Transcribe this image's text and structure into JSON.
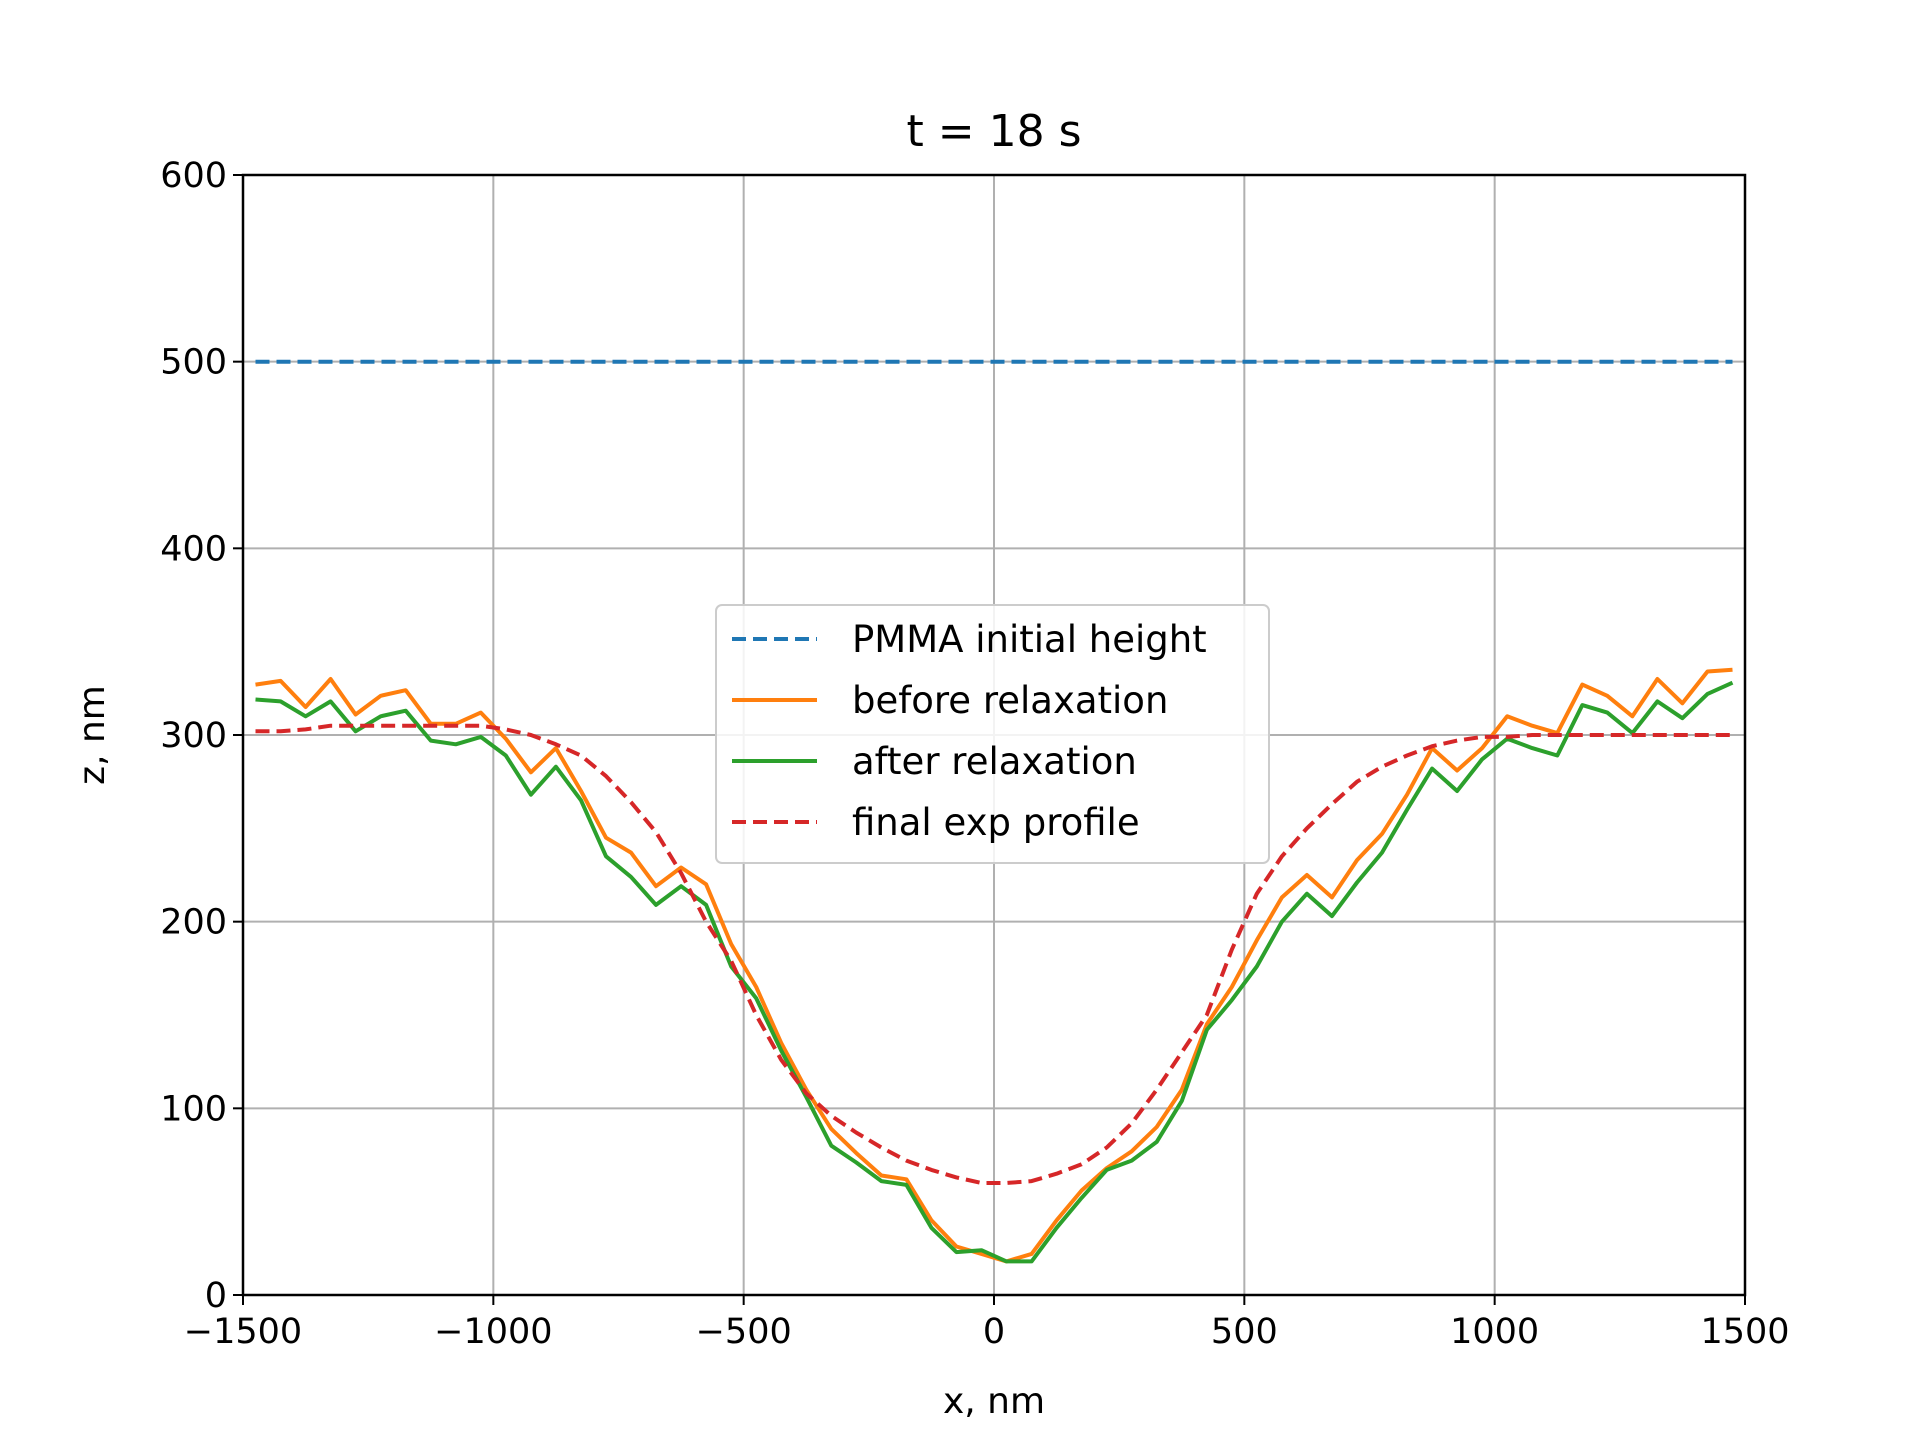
{
  "chart_data": {
    "type": "line",
    "title": "t = 18 s",
    "xlabel": "x, nm",
    "ylabel": "z, nm",
    "xlim": [
      -1500,
      1500
    ],
    "ylim": [
      0,
      600
    ],
    "xticks": [
      -1500,
      -1000,
      -500,
      0,
      500,
      1000,
      1500
    ],
    "xtick_labels": [
      "−1500",
      "−1000",
      "−500",
      "0",
      "500",
      "1000",
      "1500"
    ],
    "yticks": [
      0,
      100,
      200,
      300,
      400,
      500,
      600
    ],
    "ytick_labels": [
      "0",
      "100",
      "200",
      "300",
      "400",
      "500",
      "600"
    ],
    "grid": true,
    "legend_position": "center",
    "series": [
      {
        "name": "PMMA initial height",
        "color": "#1f77b4",
        "style": "dashed",
        "x": [
          -1475,
          1475
        ],
        "y": [
          500,
          500
        ]
      },
      {
        "name": "before relaxation",
        "color": "#ff7f0e",
        "style": "solid",
        "x": [
          -1475,
          -1425,
          -1375,
          -1325,
          -1275,
          -1225,
          -1175,
          -1125,
          -1075,
          -1025,
          -975,
          -925,
          -875,
          -825,
          -775,
          -725,
          -675,
          -625,
          -575,
          -525,
          -475,
          -425,
          -375,
          -325,
          -275,
          -225,
          -175,
          -125,
          -75,
          -25,
          25,
          75,
          125,
          175,
          225,
          275,
          325,
          375,
          425,
          475,
          525,
          575,
          625,
          675,
          725,
          775,
          825,
          875,
          925,
          975,
          1025,
          1075,
          1125,
          1175,
          1225,
          1275,
          1325,
          1375,
          1425,
          1475
        ],
        "y": [
          327,
          329,
          315,
          330,
          311,
          321,
          324,
          306,
          306,
          312,
          298,
          280,
          293,
          270,
          245,
          237,
          219,
          229,
          220,
          188,
          165,
          135,
          110,
          89,
          76,
          64,
          62,
          40,
          26,
          22,
          18,
          22,
          40,
          56,
          68,
          77,
          90,
          110,
          145,
          165,
          190,
          213,
          225,
          213,
          233,
          247,
          268,
          293,
          281,
          293,
          310,
          305,
          301,
          327,
          321,
          310,
          330,
          317,
          334,
          335
        ]
      },
      {
        "name": "after relaxation",
        "color": "#2ca02c",
        "style": "solid",
        "x": [
          -1475,
          -1425,
          -1375,
          -1325,
          -1275,
          -1225,
          -1175,
          -1125,
          -1075,
          -1025,
          -975,
          -925,
          -875,
          -825,
          -775,
          -725,
          -675,
          -625,
          -575,
          -525,
          -475,
          -425,
          -375,
          -325,
          -275,
          -225,
          -175,
          -125,
          -75,
          -25,
          25,
          75,
          125,
          175,
          225,
          275,
          325,
          375,
          425,
          475,
          525,
          575,
          625,
          675,
          725,
          775,
          825,
          875,
          925,
          975,
          1025,
          1075,
          1125,
          1175,
          1225,
          1275,
          1325,
          1375,
          1425,
          1475
        ],
        "y": [
          319,
          318,
          310,
          318,
          302,
          310,
          313,
          297,
          295,
          299,
          289,
          268,
          283,
          265,
          235,
          224,
          209,
          219,
          209,
          176,
          159,
          131,
          106,
          80,
          71,
          61,
          59,
          36,
          23,
          24,
          18,
          18,
          36,
          52,
          67,
          72,
          82,
          104,
          142,
          158,
          176,
          200,
          215,
          203,
          221,
          237,
          260,
          282,
          270,
          287,
          298,
          293,
          289,
          316,
          312,
          301,
          318,
          309,
          322,
          328
        ]
      },
      {
        "name": "final exp profile",
        "color": "#d62728",
        "style": "dashed",
        "x": [
          -1475,
          -1425,
          -1375,
          -1325,
          -1275,
          -1225,
          -1175,
          -1125,
          -1075,
          -1025,
          -975,
          -925,
          -875,
          -825,
          -775,
          -725,
          -675,
          -625,
          -575,
          -525,
          -475,
          -425,
          -375,
          -325,
          -275,
          -225,
          -175,
          -125,
          -75,
          -25,
          25,
          75,
          125,
          175,
          225,
          275,
          325,
          375,
          425,
          475,
          525,
          575,
          625,
          675,
          725,
          775,
          825,
          875,
          925,
          975,
          1025,
          1075,
          1125,
          1175,
          1225,
          1275,
          1325,
          1375,
          1425,
          1475
        ],
        "y": [
          302,
          302,
          303,
          305,
          305,
          305,
          305,
          305,
          305,
          305,
          303,
          300,
          295,
          289,
          278,
          264,
          248,
          226,
          200,
          179,
          150,
          126,
          108,
          96,
          87,
          79,
          72,
          67,
          63,
          60,
          60,
          61,
          65,
          70,
          79,
          92,
          110,
          130,
          150,
          185,
          215,
          235,
          250,
          263,
          275,
          283,
          289,
          294,
          297,
          299,
          299,
          300,
          300,
          300,
          300,
          300,
          300,
          300,
          300,
          300
        ]
      }
    ]
  }
}
